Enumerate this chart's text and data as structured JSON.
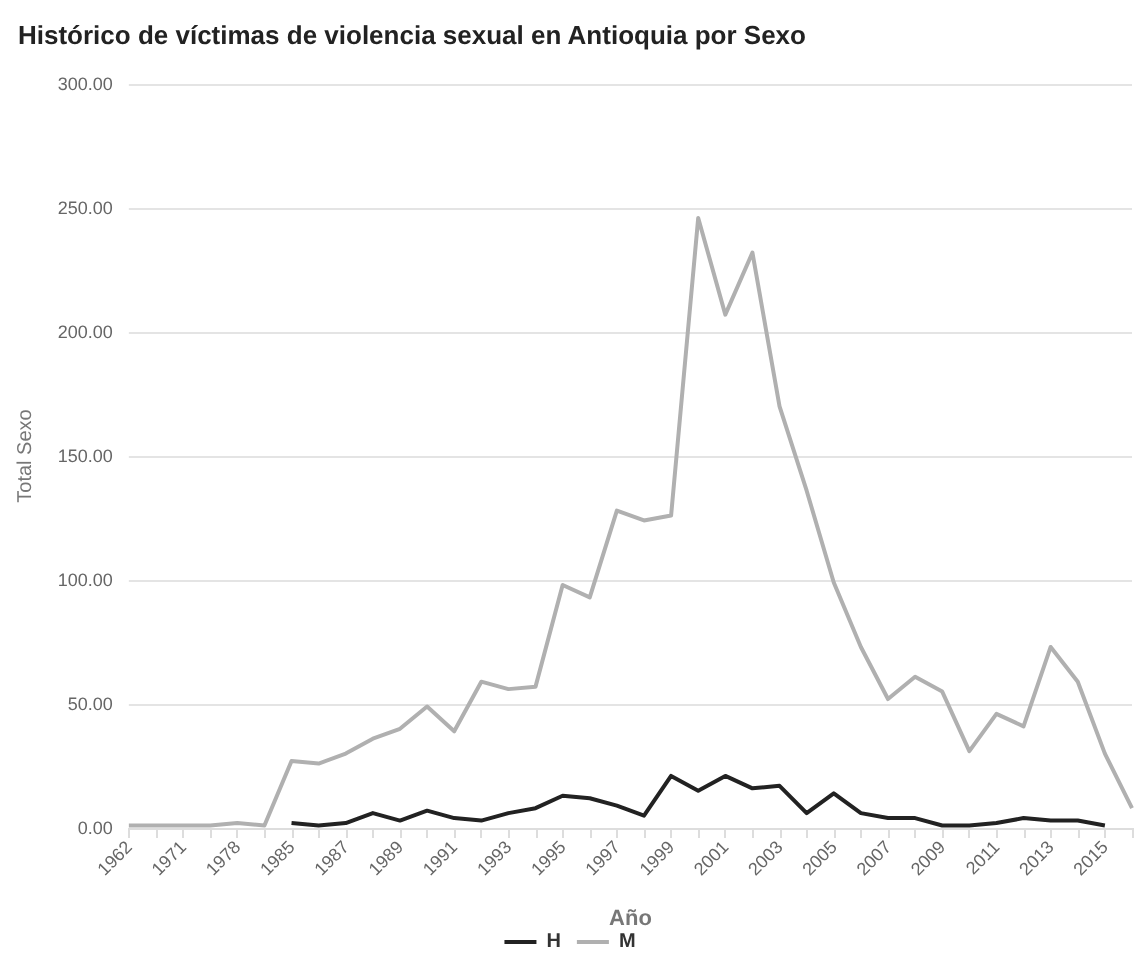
{
  "chart_data": {
    "type": "line",
    "title": "Histórico de víctimas de violencia sexual en Antioquia por Sexo",
    "xlabel": "Año",
    "ylabel": "Total Sexo",
    "categories": [
      "1962",
      null,
      "1971",
      null,
      "1978",
      null,
      "1985",
      null,
      "1987",
      null,
      "1989",
      null,
      "1991",
      null,
      "1993",
      null,
      "1995",
      null,
      "1997",
      null,
      "1999",
      null,
      "2001",
      null,
      "2003",
      null,
      "2005",
      null,
      "2007",
      null,
      "2009",
      null,
      "2011",
      null,
      "2013",
      null,
      "2015",
      null
    ],
    "series": [
      {
        "name": "H",
        "color": "#222222",
        "values": [
          null,
          null,
          null,
          null,
          null,
          null,
          2,
          1,
          2,
          6,
          3,
          7,
          4,
          3,
          6,
          8,
          13,
          12,
          9,
          5,
          21,
          15,
          21,
          16,
          17,
          6,
          14,
          6,
          4,
          4,
          1,
          1,
          2,
          4,
          3,
          3,
          1,
          null
        ]
      },
      {
        "name": "M",
        "color": "#b0b0b0",
        "values": [
          1,
          1,
          1,
          1,
          2,
          1,
          27,
          26,
          30,
          36,
          40,
          49,
          39,
          59,
          56,
          57,
          98,
          93,
          128,
          124,
          126,
          246,
          207,
          232,
          170,
          136,
          99,
          73,
          52,
          61,
          55,
          31,
          46,
          41,
          73,
          59,
          30,
          8
        ]
      }
    ],
    "ylim": [
      0,
      300
    ],
    "yticks": [
      {
        "value": 0,
        "label": "0.00"
      },
      {
        "value": 50,
        "label": "50.00"
      },
      {
        "value": 100,
        "label": "100.00"
      },
      {
        "value": 150,
        "label": "150.00"
      },
      {
        "value": 200,
        "label": "200.00"
      },
      {
        "value": 250,
        "label": "250.00"
      },
      {
        "value": 300,
        "label": "300.00"
      }
    ],
    "grid": "y",
    "legend": "bottom",
    "marker": "none",
    "line_style": "solid"
  }
}
